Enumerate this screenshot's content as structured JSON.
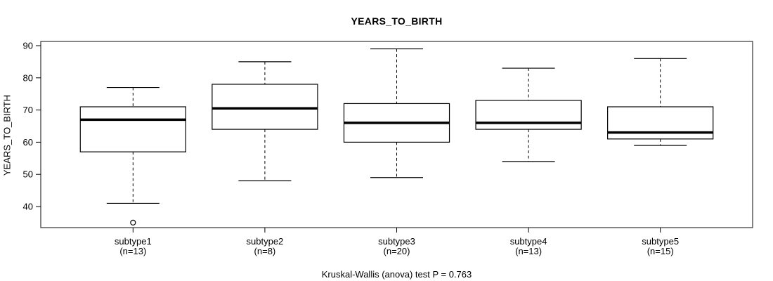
{
  "figure": {
    "title": "YEARS_TO_BIRTH",
    "caption": "Kruskal-Wallis (anova) test P = 0.763"
  },
  "colors": {
    "line": "#000000",
    "frame": "#333333",
    "box_fill": "#ffffff",
    "background": "#ffffff"
  },
  "chart_data": {
    "type": "boxplot",
    "title": "YEARS_TO_BIRTH",
    "xlabel": "",
    "ylabel": "YEARS_TO_BIRTH",
    "caption": "Kruskal-Wallis (anova) test P = 0.763",
    "grid": false,
    "legend": false,
    "yticks": [
      40,
      50,
      60,
      70,
      80,
      90
    ],
    "ylim": [
      33.45,
      91.31
    ],
    "categories": [
      "subtype1",
      "subtype2",
      "subtype3",
      "subtype4",
      "subtype5"
    ],
    "category_sublabels": [
      "(n=13)",
      "(n=8)",
      "(n=20)",
      "(n=13)",
      "(n=15)"
    ],
    "series": [
      {
        "name": "subtype1",
        "n": 13,
        "whisker_low": 41,
        "q1": 57,
        "median": 67,
        "q3": 71,
        "whisker_high": 77,
        "outliers": [
          35
        ]
      },
      {
        "name": "subtype2",
        "n": 8,
        "whisker_low": 48,
        "q1": 64,
        "median": 70.5,
        "q3": 78,
        "whisker_high": 85,
        "outliers": []
      },
      {
        "name": "subtype3",
        "n": 20,
        "whisker_low": 49,
        "q1": 60,
        "median": 66,
        "q3": 72,
        "whisker_high": 89,
        "outliers": []
      },
      {
        "name": "subtype4",
        "n": 13,
        "whisker_low": 54,
        "q1": 64,
        "median": 66,
        "q3": 73,
        "whisker_high": 83,
        "outliers": []
      },
      {
        "name": "subtype5",
        "n": 15,
        "whisker_low": 59,
        "q1": 61,
        "median": 63,
        "q3": 71,
        "whisker_high": 86,
        "outliers": []
      }
    ]
  }
}
